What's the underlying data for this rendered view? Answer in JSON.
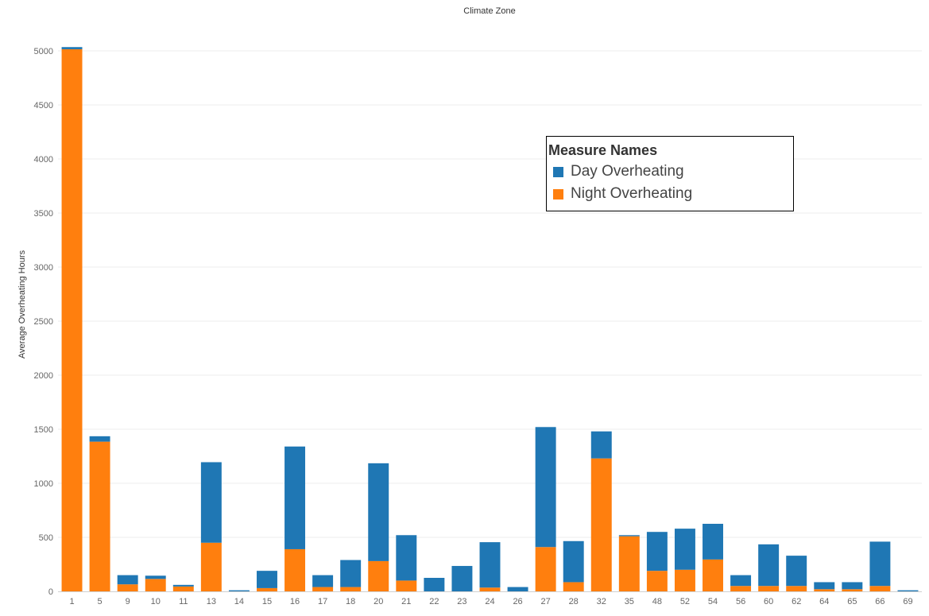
{
  "chart_data": {
    "type": "bar",
    "stacked": true,
    "title": "Climate Zone",
    "xlabel": "",
    "ylabel": "Average Overheating Hours",
    "ylim": [
      0,
      5250
    ],
    "yticks": [
      0,
      500,
      1000,
      1500,
      2000,
      2500,
      3000,
      3500,
      4000,
      4500,
      5000
    ],
    "grid": "horizontal",
    "legend": {
      "title": "Measure Names",
      "placement": "top-right"
    },
    "categories": [
      "1",
      "5",
      "9",
      "10",
      "11",
      "13",
      "14",
      "15",
      "16",
      "17",
      "18",
      "20",
      "21",
      "22",
      "23",
      "24",
      "26",
      "27",
      "28",
      "32",
      "35",
      "48",
      "52",
      "54",
      "56",
      "60",
      "62",
      "64",
      "65",
      "66",
      "69"
    ],
    "series": [
      {
        "name": "Night Overheating",
        "color": "#ff7f0e",
        "values": [
          5015,
          1385,
          65,
          115,
          45,
          450,
          0,
          30,
          390,
          40,
          40,
          280,
          100,
          0,
          0,
          35,
          0,
          410,
          85,
          1230,
          510,
          190,
          200,
          295,
          50,
          50,
          50,
          20,
          20,
          50,
          0
        ]
      },
      {
        "name": "Day Overheating",
        "color": "#1f77b4",
        "values": [
          20,
          50,
          85,
          30,
          15,
          745,
          10,
          160,
          950,
          110,
          250,
          905,
          420,
          125,
          235,
          420,
          40,
          1110,
          380,
          250,
          10,
          360,
          380,
          330,
          100,
          385,
          280,
          65,
          65,
          410,
          10
        ]
      }
    ]
  }
}
